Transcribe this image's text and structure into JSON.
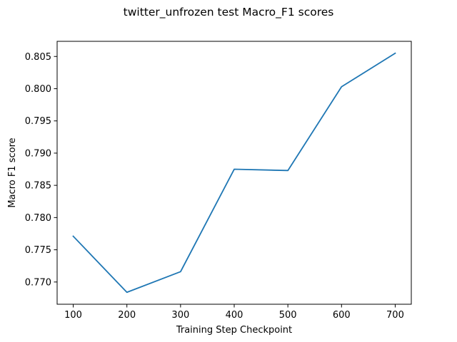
{
  "chart_data": {
    "type": "line",
    "title": "twitter_unfrozen test Macro_F1 scores",
    "xlabel": "Training Step Checkpoint",
    "ylabel": "Macro F1 score",
    "x": [
      100,
      200,
      300,
      400,
      500,
      600,
      700
    ],
    "series": [
      {
        "values": [
          0.7771,
          0.7684,
          0.7716,
          0.7875,
          0.7873,
          0.8003,
          0.8055
        ],
        "color": "#1f77b4"
      }
    ],
    "xticks": [
      100,
      200,
      300,
      400,
      500,
      600,
      700
    ],
    "xtick_labels": [
      "100",
      "200",
      "300",
      "400",
      "500",
      "600",
      "700"
    ],
    "yticks": [
      0.77,
      0.775,
      0.78,
      0.785,
      0.79,
      0.795,
      0.8,
      0.805
    ],
    "ytick_labels": [
      "0.770",
      "0.775",
      "0.780",
      "0.785",
      "0.790",
      "0.795",
      "0.800",
      "0.805"
    ],
    "xlim": [
      70,
      730
    ],
    "ylim": [
      0.76655,
      0.80735
    ],
    "grid": false,
    "legend": "none"
  }
}
